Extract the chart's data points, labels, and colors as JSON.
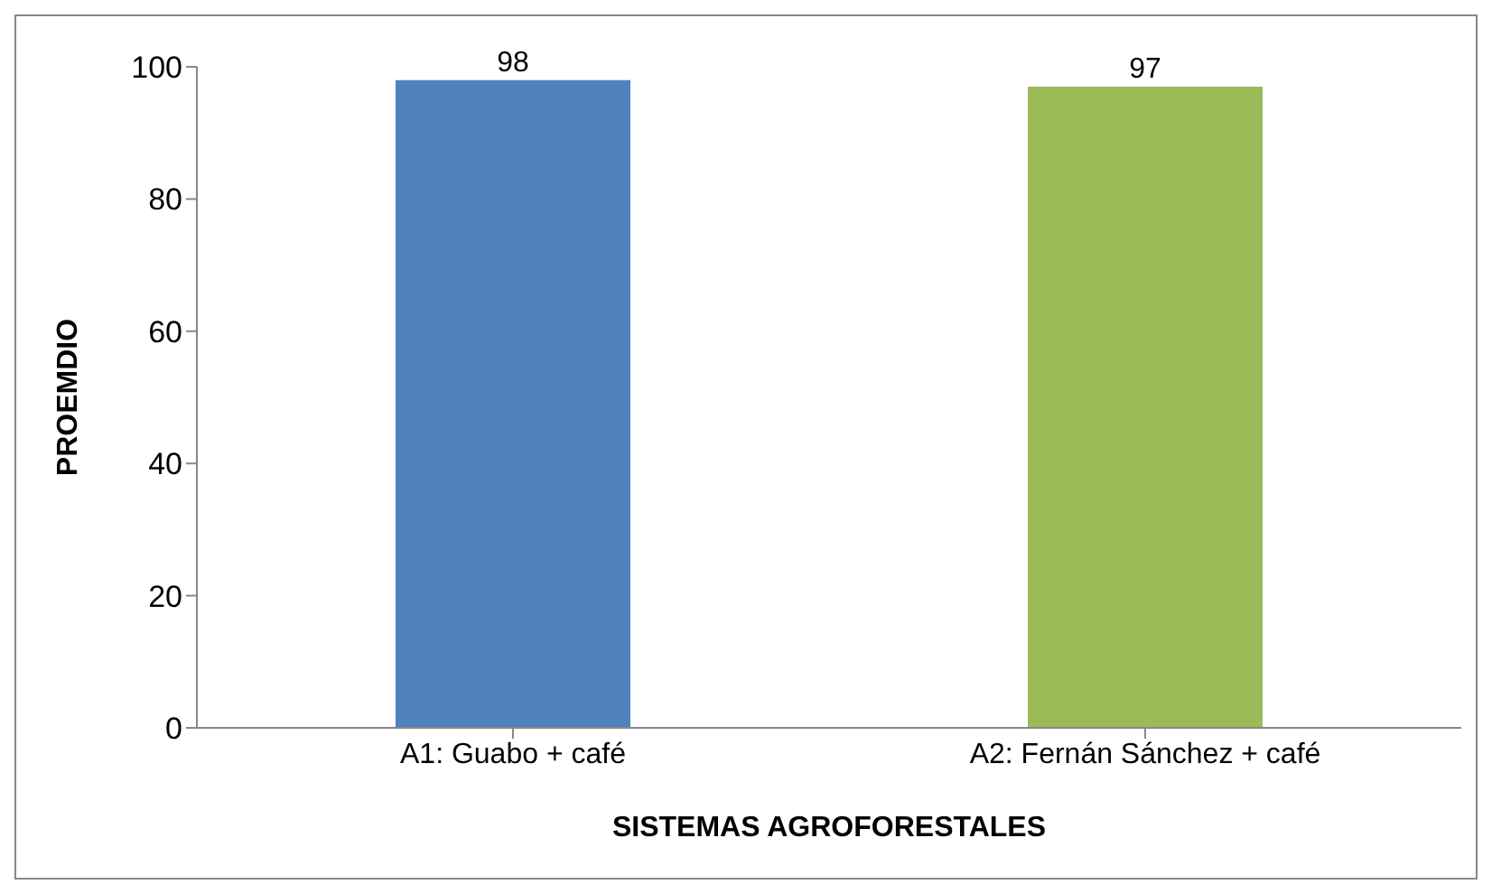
{
  "chart_data": {
    "type": "bar",
    "xlabel": "SISTEMAS AGROFORESTALES",
    "ylabel": "PROEMDIO",
    "categories": [
      "A1: Guabo + café",
      "A2: Fernán Sánchez + café"
    ],
    "values": [
      98,
      97
    ],
    "colors": [
      "#4f81bd",
      "#9bbb59"
    ],
    "ylim": [
      0,
      100
    ],
    "yticks": [
      0,
      20,
      40,
      60,
      80,
      100
    ],
    "grid": false,
    "legend": false,
    "data_labels": true
  }
}
